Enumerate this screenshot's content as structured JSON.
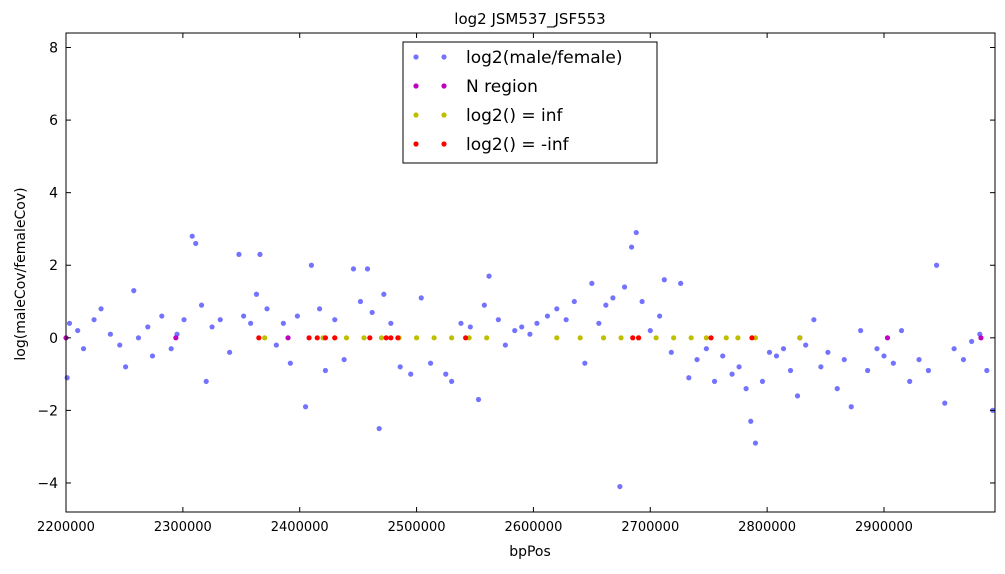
{
  "chart_data": {
    "type": "scatter",
    "title": "log2 JSM537_JSF553",
    "xlabel": "bpPos",
    "ylabel": "log(maleCov/femaleCov)",
    "xlim": [
      2200000,
      2995000
    ],
    "ylim": [
      -4.8,
      8.4
    ],
    "x_ticks": [
      2200000,
      2300000,
      2400000,
      2500000,
      2600000,
      2700000,
      2800000,
      2900000
    ],
    "x_tick_labels": [
      "2200000",
      "2300000",
      "2400000",
      "2500000",
      "2600000",
      "2700000",
      "2800000",
      "2900000"
    ],
    "y_ticks": [
      -4,
      -2,
      0,
      2,
      4,
      6,
      8
    ],
    "y_tick_labels": [
      "−4",
      "−2",
      "0",
      "2",
      "4",
      "6",
      "8"
    ],
    "grid": false,
    "legend_position": "top-center",
    "series": [
      {
        "name": "log2(male/female)",
        "color": "#0000ff",
        "marker": "dot",
        "alpha": 0.55,
        "x": [
          2201000,
          2203000,
          2210000,
          2215000,
          2224000,
          2230000,
          2238000,
          2246000,
          2251000,
          2258000,
          2262000,
          2270000,
          2274000,
          2282000,
          2290000,
          2295000,
          2301000,
          2308000,
          2311000,
          2316000,
          2320000,
          2325000,
          2332000,
          2340000,
          2348000,
          2352000,
          2358000,
          2363000,
          2366000,
          2372000,
          2380000,
          2386000,
          2392000,
          2398000,
          2405000,
          2410000,
          2417000,
          2422000,
          2430000,
          2438000,
          2446000,
          2452000,
          2458000,
          2462000,
          2468000,
          2472000,
          2478000,
          2486000,
          2495000,
          2504000,
          2512000,
          2525000,
          2530000,
          2538000,
          2546000,
          2553000,
          2558000,
          2562000,
          2570000,
          2576000,
          2584000,
          2590000,
          2597000,
          2603000,
          2612000,
          2620000,
          2628000,
          2635000,
          2644000,
          2650000,
          2656000,
          2662000,
          2668000,
          2674000,
          2678000,
          2684000,
          2688000,
          2693000,
          2700000,
          2708000,
          2712000,
          2718000,
          2726000,
          2733000,
          2740000,
          2748000,
          2755000,
          2762000,
          2770000,
          2776000,
          2782000,
          2786000,
          2790000,
          2796000,
          2802000,
          2808000,
          2814000,
          2820000,
          2826000,
          2833000,
          2840000,
          2846000,
          2852000,
          2860000,
          2866000,
          2872000,
          2880000,
          2886000,
          2894000,
          2900000,
          2908000,
          2915000,
          2922000,
          2930000,
          2938000,
          2945000,
          2952000,
          2960000,
          2968000,
          2975000,
          2982000,
          2988000,
          2993000
        ],
        "y": [
          -1.1,
          0.4,
          0.2,
          -0.3,
          0.5,
          0.8,
          0.1,
          -0.2,
          -0.8,
          1.3,
          0.0,
          0.3,
          -0.5,
          0.6,
          -0.3,
          0.1,
          0.5,
          2.8,
          2.6,
          0.9,
          -1.2,
          0.3,
          0.5,
          -0.4,
          2.3,
          0.6,
          0.4,
          1.2,
          2.3,
          0.8,
          -0.2,
          0.4,
          -0.7,
          0.6,
          -1.9,
          2.0,
          0.8,
          -0.9,
          0.5,
          -0.6,
          1.9,
          1.0,
          1.9,
          0.7,
          -2.5,
          1.2,
          0.4,
          -0.8,
          -1.0,
          1.1,
          -0.7,
          -1.0,
          -1.2,
          0.4,
          0.3,
          -1.7,
          0.9,
          1.7,
          0.5,
          -0.2,
          0.2,
          0.3,
          0.1,
          0.4,
          0.6,
          0.8,
          0.5,
          1.0,
          -0.7,
          1.5,
          0.4,
          0.9,
          1.1,
          -4.1,
          1.4,
          2.5,
          2.9,
          1.0,
          0.2,
          0.6,
          1.6,
          -0.4,
          1.5,
          -1.1,
          -0.6,
          -0.3,
          -1.2,
          -0.5,
          -1.0,
          -0.8,
          -1.4,
          -2.3,
          -2.9,
          -1.2,
          -0.4,
          -0.5,
          -0.3,
          -0.9,
          -1.6,
          -0.2,
          0.5,
          -0.8,
          -0.4,
          -1.4,
          -0.6,
          -1.9,
          0.2,
          -0.9,
          -0.3,
          -0.5,
          -0.7,
          0.2,
          -1.2,
          -0.6,
          -0.9,
          2.0,
          -1.8,
          -0.3,
          -0.6,
          -0.1,
          0.1,
          -0.9,
          -2.0
        ]
      },
      {
        "name": "N region",
        "color": "#bf00bf",
        "marker": "dot",
        "x": [
          2200000,
          2294000,
          2390000,
          2828000,
          2903000,
          2983000
        ],
        "y": [
          0,
          0,
          0,
          0,
          0,
          0
        ]
      },
      {
        "name": "log2() = inf",
        "color": "#bfbf00",
        "marker": "dot",
        "x": [
          2370000,
          2420000,
          2430000,
          2440000,
          2455000,
          2470000,
          2485000,
          2500000,
          2515000,
          2530000,
          2545000,
          2560000,
          2620000,
          2640000,
          2660000,
          2675000,
          2690000,
          2705000,
          2720000,
          2735000,
          2748000,
          2765000,
          2775000,
          2790000,
          2828000
        ],
        "y": [
          0,
          0,
          0,
          0,
          0,
          0,
          0,
          0,
          0,
          0,
          0,
          0,
          0,
          0,
          0,
          0,
          0,
          0,
          0,
          0,
          0,
          0,
          0,
          0,
          0
        ]
      },
      {
        "name": "log2() = -inf",
        "color": "#ff0000",
        "marker": "dot",
        "x": [
          2365000,
          2408000,
          2415000,
          2422000,
          2430000,
          2460000,
          2474000,
          2478000,
          2484000,
          2542000,
          2685000,
          2690000,
          2752000,
          2787000
        ],
        "y": [
          0,
          0,
          0,
          0,
          0,
          0,
          0,
          0,
          0,
          0,
          0,
          0,
          0,
          0
        ]
      }
    ]
  }
}
